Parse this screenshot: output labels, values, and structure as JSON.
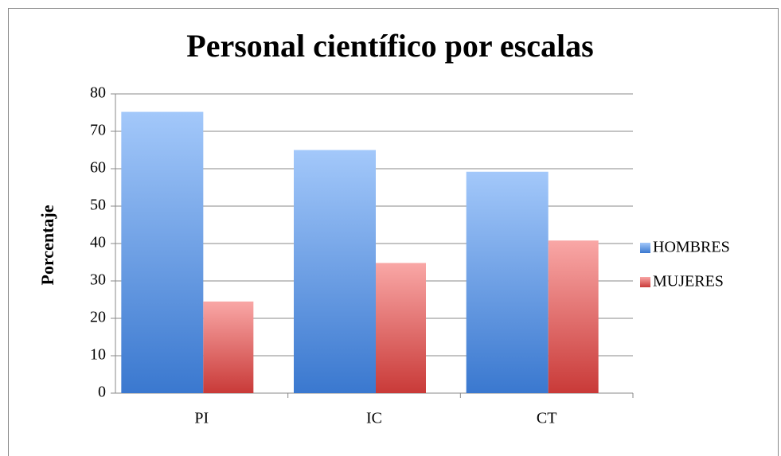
{
  "chart_data": {
    "type": "bar",
    "title": "Personal científico por escalas",
    "y_label": "Porcentaje",
    "categories": [
      "PI",
      "IC",
      "CT"
    ],
    "series": [
      {
        "name": "HOMBRES",
        "color": "#4f81bd",
        "values": [
          75.2,
          65,
          59.2
        ]
      },
      {
        "name": "MUJERES",
        "color": "#c0504d",
        "values": [
          24.5,
          34.8,
          40.8
        ]
      }
    ],
    "ylim": [
      0,
      80
    ],
    "yticks": [
      0,
      10,
      20,
      30,
      40,
      50,
      60,
      70,
      80
    ],
    "grid": true,
    "legend": "right"
  }
}
